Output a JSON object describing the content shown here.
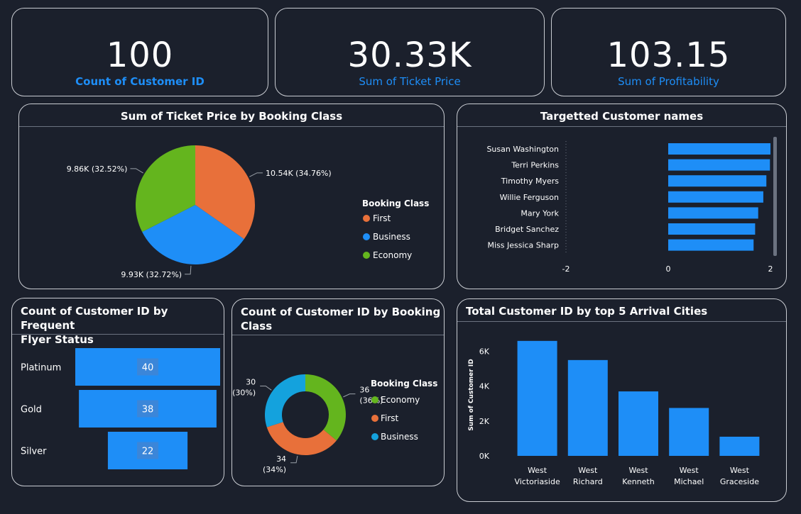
{
  "kpis": [
    {
      "value": "100",
      "label": "Count of Customer ID"
    },
    {
      "value": "30.33K",
      "label": "Sum of Ticket Price"
    },
    {
      "value": "103.15",
      "label": "Sum of Profitability"
    }
  ],
  "colors": {
    "background": "#1b202c",
    "accent": "#1e8ef7",
    "first": "#e8703a",
    "business": "#1e8ef7",
    "economy": "#64b51e",
    "donut_business": "#14a2dd"
  },
  "chart_data": [
    {
      "type": "pie",
      "title": "Sum of Ticket Price by Booking Class",
      "legend_title": "Booking Class",
      "legend_position": "right",
      "slices": [
        {
          "name": "First",
          "value": 10.54,
          "label": "10.54K (34.76%)"
        },
        {
          "name": "Business",
          "value": 9.93,
          "label": "9.93K (32.72%)"
        },
        {
          "name": "Economy",
          "value": 9.86,
          "label": "9.86K (32.52%)"
        }
      ]
    },
    {
      "type": "bar",
      "orientation": "horizontal",
      "title": "Targetted Customer names",
      "categories": [
        "Susan Washington",
        "Terri Perkins",
        "Timothy Myers",
        "Willie Ferguson",
        "Mary York",
        "Bridget Sanchez",
        "Miss Jessica Sharp"
      ],
      "values": [
        2.0,
        1.99,
        1.92,
        1.86,
        1.76,
        1.7,
        1.67
      ],
      "xlim": [
        -2,
        2
      ],
      "xticks": [
        "-2",
        "0",
        "2"
      ],
      "grid": false
    },
    {
      "type": "bar",
      "orientation": "funnel",
      "title": "Count of Customer ID by Frequent Flyer Status",
      "title_lines": [
        "Count of Customer ID by Frequent",
        "Flyer Status"
      ],
      "categories": [
        "Platinum",
        "Gold",
        "Silver"
      ],
      "values": [
        40,
        38,
        22
      ]
    },
    {
      "type": "pie",
      "variant": "donut",
      "title": "Count of Customer ID by Booking Class",
      "title_lines": [
        "Count of Customer ID by Booking",
        "Class"
      ],
      "legend_title": "Booking Class",
      "legend_position": "right",
      "slices": [
        {
          "name": "Economy",
          "value": 36,
          "label_value": "36",
          "label_pct": "(36%)"
        },
        {
          "name": "First",
          "value": 34,
          "label_value": "34",
          "label_pct": "(34%)"
        },
        {
          "name": "Business",
          "value": 30,
          "label_value": "30",
          "label_pct": "(30%)"
        }
      ]
    },
    {
      "type": "bar",
      "title": "Total Customer ID by top 5 Arrival Cities",
      "ylabel": "Sum of Customer ID",
      "categories": [
        [
          "West",
          "Victoriaside"
        ],
        [
          "West",
          "Richard"
        ],
        [
          "West",
          "Kenneth"
        ],
        [
          "West",
          "Michael"
        ],
        [
          "West",
          "Graceside"
        ]
      ],
      "values": [
        6600,
        5500,
        3700,
        2750,
        1100
      ],
      "ylim": [
        0,
        7000
      ],
      "yticks": [
        0,
        2000,
        4000,
        6000
      ],
      "ytick_labels": [
        "0K",
        "2K",
        "4K",
        "6K"
      ],
      "grid": false
    }
  ]
}
